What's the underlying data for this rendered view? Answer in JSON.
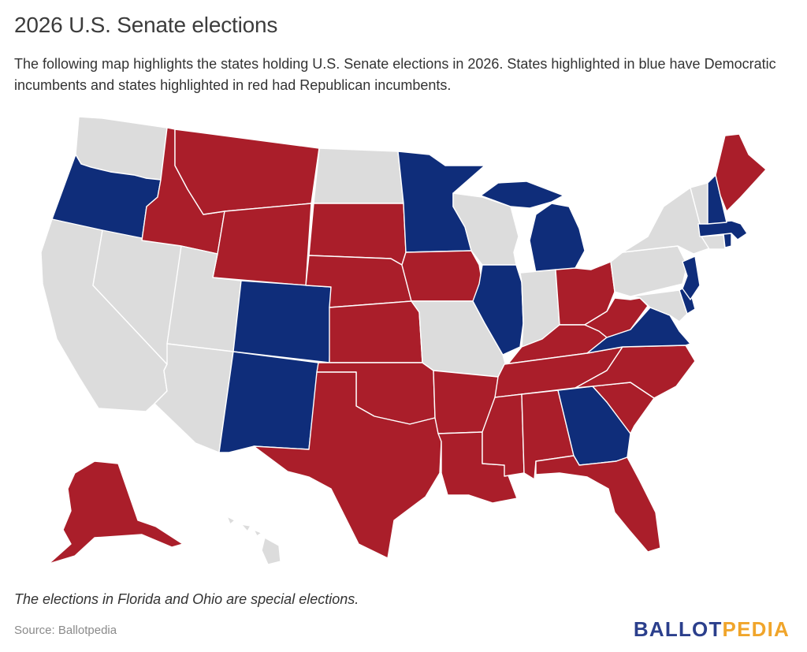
{
  "header": {
    "title": "2026 U.S. Senate elections",
    "subtitle": "The following map highlights the states holding U.S. Senate elections in 2026. States highlighted in blue have Democratic incumbents and states highlighted in red had Republican incumbents."
  },
  "colors": {
    "democratic": "#0f2d7a",
    "republican": "#aa1e2a",
    "no_election": "#dcdcdc"
  },
  "map": {
    "states": [
      {
        "name": "Washington",
        "status": "no_election"
      },
      {
        "name": "Oregon",
        "status": "democratic"
      },
      {
        "name": "California",
        "status": "no_election"
      },
      {
        "name": "Nevada",
        "status": "no_election"
      },
      {
        "name": "Idaho",
        "status": "republican"
      },
      {
        "name": "Montana",
        "status": "republican"
      },
      {
        "name": "Wyoming",
        "status": "republican"
      },
      {
        "name": "Utah",
        "status": "no_election"
      },
      {
        "name": "Arizona",
        "status": "no_election"
      },
      {
        "name": "Colorado",
        "status": "democratic"
      },
      {
        "name": "New Mexico",
        "status": "democratic"
      },
      {
        "name": "North Dakota",
        "status": "no_election"
      },
      {
        "name": "South Dakota",
        "status": "republican"
      },
      {
        "name": "Nebraska",
        "status": "republican"
      },
      {
        "name": "Kansas",
        "status": "republican"
      },
      {
        "name": "Oklahoma",
        "status": "republican"
      },
      {
        "name": "Texas",
        "status": "republican"
      },
      {
        "name": "Minnesota",
        "status": "democratic"
      },
      {
        "name": "Iowa",
        "status": "republican"
      },
      {
        "name": "Missouri",
        "status": "no_election"
      },
      {
        "name": "Arkansas",
        "status": "republican"
      },
      {
        "name": "Louisiana",
        "status": "republican"
      },
      {
        "name": "Wisconsin",
        "status": "no_election"
      },
      {
        "name": "Illinois",
        "status": "democratic"
      },
      {
        "name": "Michigan",
        "status": "democratic"
      },
      {
        "name": "Indiana",
        "status": "no_election"
      },
      {
        "name": "Ohio",
        "status": "republican"
      },
      {
        "name": "Kentucky",
        "status": "republican"
      },
      {
        "name": "Tennessee",
        "status": "republican"
      },
      {
        "name": "Mississippi",
        "status": "republican"
      },
      {
        "name": "Alabama",
        "status": "republican"
      },
      {
        "name": "Georgia",
        "status": "democratic"
      },
      {
        "name": "Florida",
        "status": "republican"
      },
      {
        "name": "South Carolina",
        "status": "republican"
      },
      {
        "name": "North Carolina",
        "status": "republican"
      },
      {
        "name": "Virginia",
        "status": "democratic"
      },
      {
        "name": "West Virginia",
        "status": "republican"
      },
      {
        "name": "Maryland",
        "status": "no_election"
      },
      {
        "name": "Delaware",
        "status": "democratic"
      },
      {
        "name": "Pennsylvania",
        "status": "no_election"
      },
      {
        "name": "New Jersey",
        "status": "democratic"
      },
      {
        "name": "New York",
        "status": "no_election"
      },
      {
        "name": "Connecticut",
        "status": "no_election"
      },
      {
        "name": "Rhode Island",
        "status": "democratic"
      },
      {
        "name": "Massachusetts",
        "status": "democratic"
      },
      {
        "name": "Vermont",
        "status": "no_election"
      },
      {
        "name": "New Hampshire",
        "status": "democratic"
      },
      {
        "name": "Maine",
        "status": "republican"
      },
      {
        "name": "Alaska",
        "status": "republican"
      },
      {
        "name": "Hawaii",
        "status": "no_election"
      }
    ]
  },
  "footer": {
    "note": "The elections in Florida and Ohio are special elections.",
    "source": "Source: Ballotpedia",
    "brand_part1": "BALLOT",
    "brand_part2": "PEDIA"
  }
}
